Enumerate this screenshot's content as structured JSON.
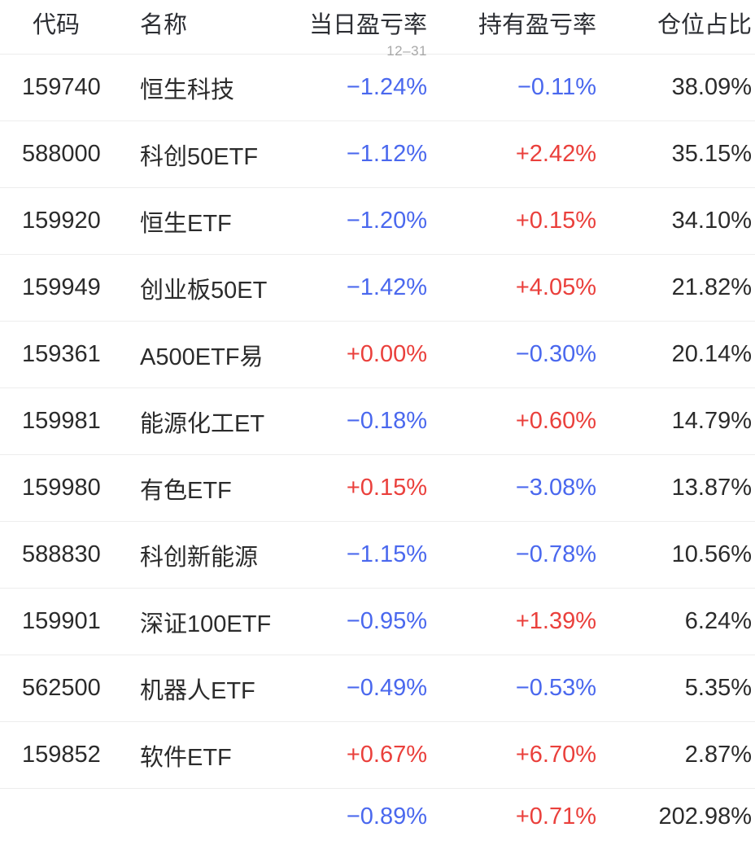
{
  "colors": {
    "positive": "#EA403C",
    "negative": "#4A68EE",
    "text": "#2B2B2B",
    "muted": "#A8A8A8",
    "divider": "#EDEDED",
    "background": "#FFFFFF"
  },
  "table": {
    "columns": [
      {
        "key": "code",
        "label": "代码"
      },
      {
        "key": "name",
        "label": "名称"
      },
      {
        "key": "daily",
        "label": "当日盈亏率",
        "sub": "12–31"
      },
      {
        "key": "holding",
        "label": "持有盈亏率"
      },
      {
        "key": "weight",
        "label": "仓位占比"
      }
    ],
    "rows": [
      {
        "code": "159740",
        "name": "恒生科技",
        "daily": "−1.24%",
        "holding": "−0.11%",
        "weight": "38.09%"
      },
      {
        "code": "588000",
        "name": "科创50ETF",
        "daily": "−1.12%",
        "holding": "+2.42%",
        "weight": "35.15%"
      },
      {
        "code": "159920",
        "name": "恒生ETF",
        "daily": "−1.20%",
        "holding": "+0.15%",
        "weight": "34.10%"
      },
      {
        "code": "159949",
        "name": "创业板50ET",
        "daily": "−1.42%",
        "holding": "+4.05%",
        "weight": "21.82%"
      },
      {
        "code": "159361",
        "name": "A500ETF易",
        "daily": "+0.00%",
        "holding": "−0.30%",
        "weight": "20.14%"
      },
      {
        "code": "159981",
        "name": "能源化工ET",
        "daily": "−0.18%",
        "holding": "+0.60%",
        "weight": "14.79%"
      },
      {
        "code": "159980",
        "name": "有色ETF",
        "daily": "+0.15%",
        "holding": "−3.08%",
        "weight": "13.87%"
      },
      {
        "code": "588830",
        "name": "科创新能源",
        "daily": "−1.15%",
        "holding": "−0.78%",
        "weight": "10.56%"
      },
      {
        "code": "159901",
        "name": "深证100ETF",
        "daily": "−0.95%",
        "holding": "+1.39%",
        "weight": "6.24%"
      },
      {
        "code": "562500",
        "name": "机器人ETF",
        "daily": "−0.49%",
        "holding": "−0.53%",
        "weight": "5.35%"
      },
      {
        "code": "159852",
        "name": "软件ETF",
        "daily": "+0.67%",
        "holding": "+6.70%",
        "weight": "2.87%"
      }
    ],
    "summary": {
      "daily": "−0.89%",
      "holding": "+0.71%",
      "weight": "202.98%"
    }
  }
}
